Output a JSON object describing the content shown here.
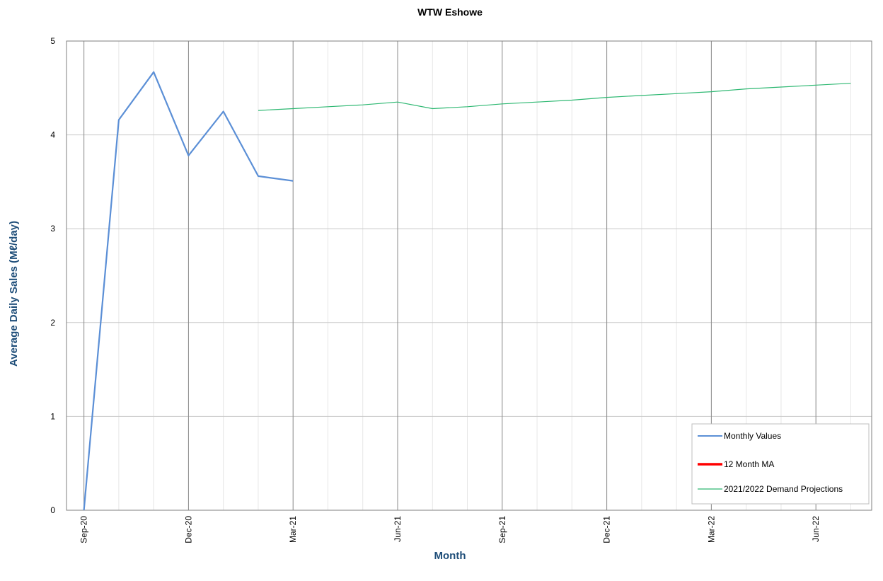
{
  "chart_data": {
    "type": "line",
    "title": "WTW Eshowe",
    "xlabel": "Month",
    "ylabel": "Average Daily Sales (Mℓ/day)",
    "ylim": [
      0,
      5
    ],
    "yticks": [
      "0",
      "1",
      "2",
      "3",
      "4",
      "5"
    ],
    "x_range": [
      "2020-09",
      "2022-07"
    ],
    "xtick_labels": [
      "Sep-20",
      "Dec-20",
      "Mar-21",
      "Jun-21",
      "Sep-21",
      "Dec-21",
      "Mar-22",
      "Jun-22"
    ],
    "xtick_months": [
      "2020-09",
      "2020-12",
      "2021-03",
      "2021-06",
      "2021-09",
      "2021-12",
      "2022-03",
      "2022-06"
    ],
    "grid": true,
    "legend_position": "bottom-right",
    "series": [
      {
        "name": "Monthly Values",
        "color": "#5B8FD6",
        "x": [
          "2020-09",
          "2020-10",
          "2020-11",
          "2020-12",
          "2021-01",
          "2021-02",
          "2021-03"
        ],
        "values": [
          0.0,
          4.16,
          4.67,
          3.78,
          4.25,
          3.56,
          3.51
        ]
      },
      {
        "name": "12 Month MA",
        "color": "#FF0000",
        "x": [],
        "values": []
      },
      {
        "name": "2021/2022 Demand Projections",
        "color": "#2EB872",
        "x": [
          "2021-02",
          "2021-03",
          "2021-04",
          "2021-05",
          "2021-06",
          "2021-07",
          "2021-08",
          "2021-09",
          "2021-10",
          "2021-11",
          "2021-12",
          "2022-01",
          "2022-02",
          "2022-03",
          "2022-04",
          "2022-05",
          "2022-06",
          "2022-07"
        ],
        "values": [
          4.26,
          4.28,
          4.3,
          4.32,
          4.35,
          4.28,
          4.3,
          4.33,
          4.35,
          4.37,
          4.4,
          4.42,
          4.44,
          4.46,
          4.49,
          4.51,
          4.53,
          4.55
        ]
      }
    ],
    "colors": {
      "axis_title": "#1F4E79",
      "major_grid": "#8C8C8C",
      "minor_grid": "#E6E6E6",
      "plot_border": "#7F7F7F"
    }
  }
}
